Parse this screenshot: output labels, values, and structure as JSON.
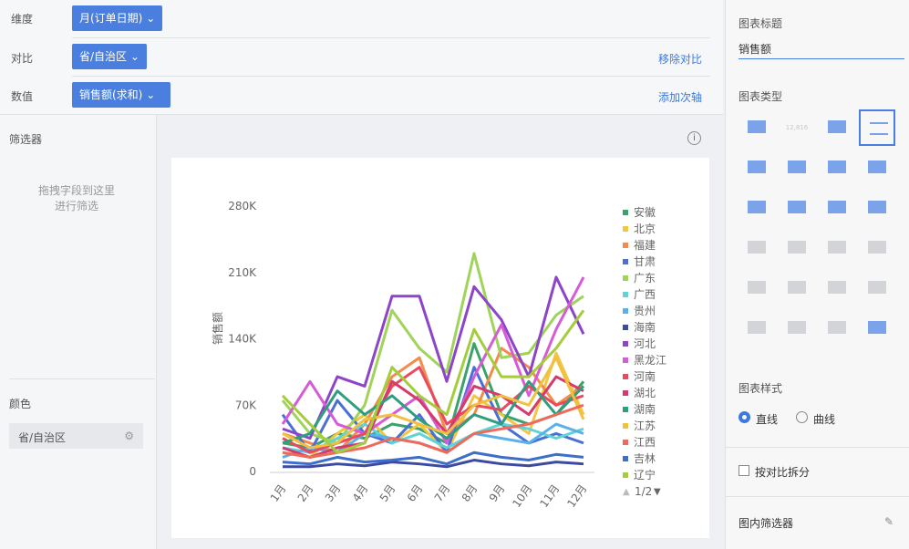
{
  "toolbar": {
    "rows": [
      {
        "label": "维度",
        "pill": "月(订单日期)"
      },
      {
        "label": "对比",
        "pill": "省/自治区",
        "action": "移除对比"
      },
      {
        "label": "数值",
        "pill": "销售额(求和)",
        "action": "添加次轴"
      }
    ]
  },
  "sidebar": {
    "filter_title": "筛选器",
    "filter_hint": [
      "拖拽字段到这里",
      "进行筛选"
    ],
    "color_title": "颜色",
    "color_field": "省/自治区"
  },
  "chart_data": {
    "type": "line",
    "y_label": "销售额",
    "categories": [
      "1月",
      "2月",
      "3月",
      "4月",
      "5月",
      "6月",
      "7月",
      "8月",
      "9月",
      "10月",
      "11月",
      "12月"
    ],
    "ylim": [
      0,
      280000
    ],
    "yticks": [
      0,
      {
        "value": 70000,
        "label": "70K"
      },
      {
        "value": 140000,
        "label": "140K"
      },
      {
        "value": 210000,
        "label": "210K"
      },
      {
        "value": 280000,
        "label": "280K"
      }
    ],
    "legend_page": "1/2",
    "series": [
      {
        "name": "安徽",
        "color": "#3aa36b",
        "values": [
          30000,
          25000,
          40000,
          35000,
          50000,
          45000,
          30000,
          135000,
          60000,
          50000,
          60000,
          95000
        ]
      },
      {
        "name": "北京",
        "color": "#f4c542",
        "values": [
          20000,
          15000,
          40000,
          60000,
          30000,
          50000,
          20000,
          80000,
          60000,
          40000,
          125000,
          60000
        ]
      },
      {
        "name": "福建",
        "color": "#f28b4b",
        "values": [
          40000,
          30000,
          20000,
          50000,
          100000,
          120000,
          40000,
          60000,
          130000,
          110000,
          70000,
          90000
        ]
      },
      {
        "name": "甘肃",
        "color": "#4a6fd6",
        "values": [
          60000,
          20000,
          75000,
          40000,
          30000,
          60000,
          20000,
          110000,
          50000,
          30000,
          40000,
          30000
        ]
      },
      {
        "name": "广东",
        "color": "#9fd35a",
        "values": [
          75000,
          40000,
          30000,
          70000,
          170000,
          130000,
          105000,
          230000,
          120000,
          125000,
          165000,
          185000
        ]
      },
      {
        "name": "广西",
        "color": "#5fd3d6",
        "values": [
          25000,
          20000,
          35000,
          50000,
          30000,
          40000,
          25000,
          40000,
          50000,
          45000,
          35000,
          45000
        ]
      },
      {
        "name": "贵州",
        "color": "#5ab0e8",
        "values": [
          15000,
          25000,
          20000,
          40000,
          35000,
          30000,
          20000,
          40000,
          35000,
          30000,
          50000,
          40000
        ]
      },
      {
        "name": "海南",
        "color": "#3c4aa0",
        "values": [
          5000,
          5000,
          8000,
          6000,
          10000,
          8000,
          5000,
          12000,
          8000,
          6000,
          10000,
          8000
        ]
      },
      {
        "name": "河北",
        "color": "#8e44c8",
        "values": [
          45000,
          35000,
          100000,
          90000,
          185000,
          185000,
          95000,
          195000,
          160000,
          100000,
          205000,
          145000
        ]
      },
      {
        "name": "黑龙江",
        "color": "#d65bd6",
        "values": [
          50000,
          95000,
          50000,
          40000,
          60000,
          80000,
          30000,
          100000,
          155000,
          80000,
          150000,
          205000
        ]
      },
      {
        "name": "河南",
        "color": "#e84a5f",
        "values": [
          35000,
          20000,
          30000,
          40000,
          90000,
          110000,
          50000,
          70000,
          65000,
          90000,
          70000,
          80000
        ]
      },
      {
        "name": "湖北",
        "color": "#d63a6a",
        "values": [
          25000,
          15000,
          25000,
          30000,
          95000,
          75000,
          40000,
          90000,
          80000,
          60000,
          100000,
          85000
        ]
      },
      {
        "name": "湖南",
        "color": "#2e9e7f",
        "values": [
          30000,
          40000,
          85000,
          60000,
          80000,
          55000,
          35000,
          60000,
          50000,
          95000,
          60000,
          90000
        ]
      },
      {
        "name": "江苏",
        "color": "#f0c040",
        "values": [
          40000,
          25000,
          30000,
          55000,
          60000,
          50000,
          40000,
          70000,
          80000,
          70000,
          120000,
          55000
        ]
      },
      {
        "name": "江西",
        "color": "#f06a5a",
        "values": [
          20000,
          15000,
          20000,
          25000,
          35000,
          30000,
          20000,
          40000,
          45000,
          50000,
          60000,
          70000
        ]
      },
      {
        "name": "吉林",
        "color": "#3d6ec9",
        "values": [
          10000,
          8000,
          15000,
          10000,
          12000,
          15000,
          8000,
          20000,
          15000,
          12000,
          18000,
          15000
        ]
      },
      {
        "name": "辽宁",
        "color": "#a4cc3d",
        "values": [
          80000,
          50000,
          20000,
          30000,
          110000,
          80000,
          60000,
          150000,
          100000,
          100000,
          130000,
          170000
        ]
      }
    ]
  },
  "settings": {
    "title_label": "图表标题",
    "title_value": "销售额",
    "type_label": "图表类型",
    "kpi_icon_text": "12,816",
    "style_label": "图表样式",
    "style_options": [
      "直线",
      "曲线"
    ],
    "split_label": "按对比拆分",
    "inner_filter": "图内筛选器"
  }
}
